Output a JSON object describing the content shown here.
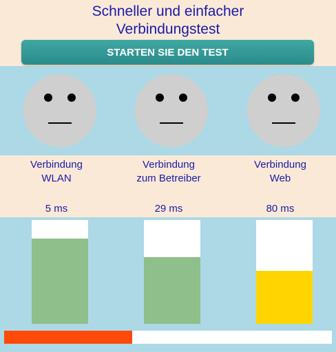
{
  "header": {
    "title_line1": "Schneller und einfacher",
    "title_line2": "Verbindungstest",
    "start_button": "STARTEN SIE DEN TEST"
  },
  "tests": [
    {
      "label_line1": "Verbindung",
      "label_line2": "WLAN",
      "latency": "5 ms",
      "face": "neutral-face-icon",
      "level": 0.82,
      "color": "#8fbf8a"
    },
    {
      "label_line1": "Verbindung",
      "label_line2": "zum Betreiber",
      "latency": "29 ms",
      "face": "neutral-face-icon",
      "level": 0.64,
      "color": "#8fbf8a"
    },
    {
      "label_line1": "Verbindung",
      "label_line2": "Web",
      "latency": "80 ms",
      "face": "neutral-face-icon",
      "level": 0.51,
      "color": "#ffd400"
    }
  ],
  "progress": {
    "fraction": 0.39,
    "color": "#ff4a0a"
  },
  "colors": {
    "title": "#1a1aa6",
    "button": "#2f9a97",
    "panel": "#add8e6",
    "background": "#fbe9d8"
  }
}
